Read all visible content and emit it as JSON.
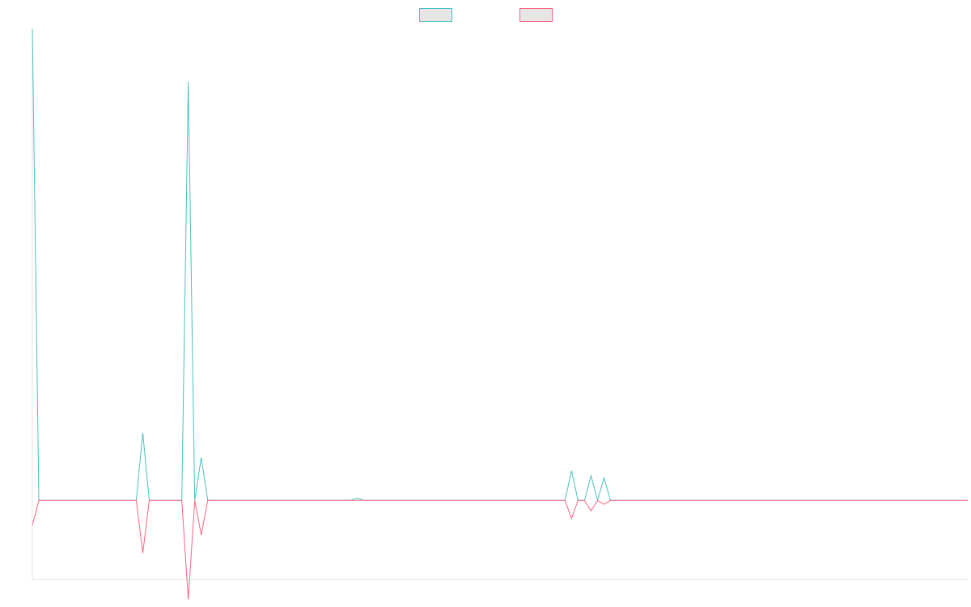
{
  "chart_data": {
    "type": "line",
    "title": "",
    "xlabel": "",
    "ylabel": "",
    "grid": false,
    "legend_position": "top-center",
    "x_count": 145,
    "ylim": [
      -24000,
      143000
    ],
    "series": [
      {
        "color": "#4bc0c0",
        "points": [
          [
            0,
            143000
          ],
          [
            1,
            0
          ],
          [
            16,
            0
          ],
          [
            17,
            20500
          ],
          [
            18,
            0
          ],
          [
            23,
            0
          ],
          [
            24,
            127000
          ],
          [
            25,
            0
          ],
          [
            26,
            13000
          ],
          [
            27,
            0
          ],
          [
            49,
            0
          ],
          [
            50,
            700
          ],
          [
            51,
            0
          ],
          [
            82,
            0
          ],
          [
            83,
            9000
          ],
          [
            84,
            0
          ],
          [
            85,
            0
          ],
          [
            86,
            7500
          ],
          [
            87,
            0
          ],
          [
            88,
            6800
          ],
          [
            89,
            0
          ],
          [
            144,
            0
          ]
        ]
      },
      {
        "color": "#ff6384",
        "points": [
          [
            0,
            -7500
          ],
          [
            1,
            0
          ],
          [
            16,
            0
          ],
          [
            17,
            -16000
          ],
          [
            18,
            0
          ],
          [
            23,
            0
          ],
          [
            24,
            -30000
          ],
          [
            25,
            0
          ],
          [
            26,
            -10500
          ],
          [
            27,
            0
          ],
          [
            82,
            0
          ],
          [
            83,
            -5500
          ],
          [
            84,
            0
          ],
          [
            85,
            0
          ],
          [
            86,
            -3200
          ],
          [
            87,
            0
          ],
          [
            88,
            -1200
          ],
          [
            89,
            0
          ],
          [
            144,
            0
          ]
        ]
      }
    ]
  }
}
